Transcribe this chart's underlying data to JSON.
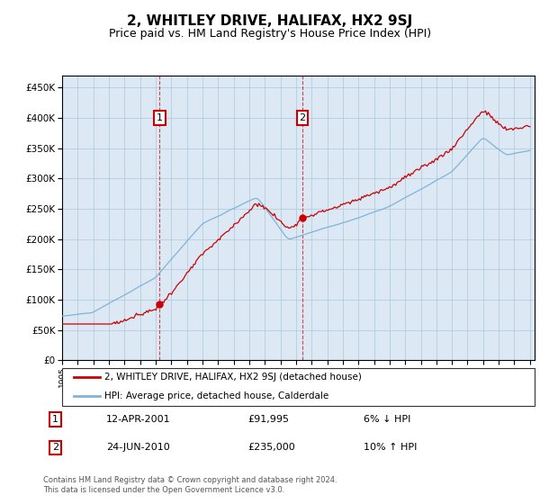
{
  "title": "2, WHITLEY DRIVE, HALIFAX, HX2 9SJ",
  "subtitle": "Price paid vs. HM Land Registry's House Price Index (HPI)",
  "title_fontsize": 11,
  "subtitle_fontsize": 9,
  "background_color": "#ffffff",
  "plot_bg_color": "#dce9f5",
  "legend_line1": "2, WHITLEY DRIVE, HALIFAX, HX2 9SJ (detached house)",
  "legend_line2": "HPI: Average price, detached house, Calderdale",
  "purchase1_date": "12-APR-2001",
  "purchase1_price": 91995,
  "purchase2_date": "24-JUN-2010",
  "purchase2_price": 235000,
  "purchase1_note": "6% ↓ HPI",
  "purchase2_note": "10% ↑ HPI",
  "footer": "Contains HM Land Registry data © Crown copyright and database right 2024.\nThis data is licensed under the Open Government Licence v3.0.",
  "red_color": "#cc0000",
  "blue_color": "#7eb4d9",
  "ylim_min": 0,
  "ylim_max": 470000,
  "yticks": [
    0,
    50000,
    100000,
    150000,
    200000,
    250000,
    300000,
    350000,
    400000,
    450000
  ],
  "start_year": 1995,
  "end_year": 2025
}
